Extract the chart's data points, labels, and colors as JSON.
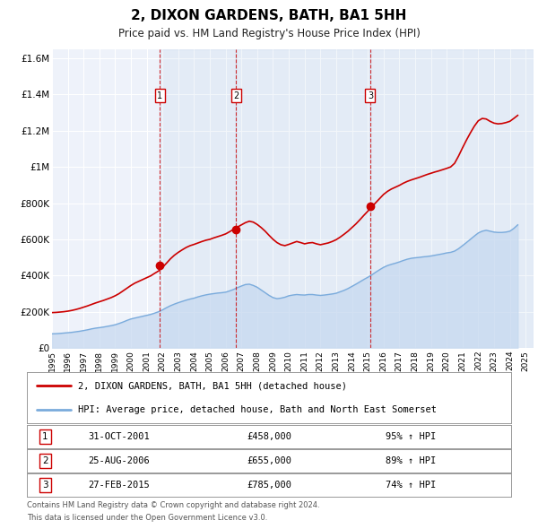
{
  "title": "2, DIXON GARDENS, BATH, BA1 5HH",
  "subtitle": "Price paid vs. HM Land Registry's House Price Index (HPI)",
  "background_color": "#ffffff",
  "plot_bg_color": "#eef2fa",
  "grid_color": "#ffffff",
  "hpi_line_color": "#7aabdc",
  "hpi_fill_color": "#c5d8f0",
  "price_line_color": "#cc0000",
  "ylim": [
    0,
    1650000
  ],
  "yticks": [
    0,
    200000,
    400000,
    600000,
    800000,
    1000000,
    1200000,
    1400000,
    1600000
  ],
  "ytick_labels": [
    "£0",
    "£200K",
    "£400K",
    "£600K",
    "£800K",
    "£1M",
    "£1.2M",
    "£1.4M",
    "£1.6M"
  ],
  "xmin": 1995.0,
  "xmax": 2025.5,
  "sale_dates": [
    2001.833,
    2006.647,
    2015.162
  ],
  "sale_prices": [
    458000,
    655000,
    785000
  ],
  "sale_labels": [
    "1",
    "2",
    "3"
  ],
  "legend_line1": "2, DIXON GARDENS, BATH, BA1 5HH (detached house)",
  "legend_line2": "HPI: Average price, detached house, Bath and North East Somerset",
  "table_rows": [
    {
      "num": "1",
      "date": "31-OCT-2001",
      "price": "£458,000",
      "pct": "95% ↑ HPI"
    },
    {
      "num": "2",
      "date": "25-AUG-2006",
      "price": "£655,000",
      "pct": "89% ↑ HPI"
    },
    {
      "num": "3",
      "date": "27-FEB-2015",
      "price": "£785,000",
      "pct": "74% ↑ HPI"
    }
  ],
  "footer_line1": "Contains HM Land Registry data © Crown copyright and database right 2024.",
  "footer_line2": "This data is licensed under the Open Government Licence v3.0.",
  "hpi_data_x": [
    1995.0,
    1995.25,
    1995.5,
    1995.75,
    1996.0,
    1996.25,
    1996.5,
    1996.75,
    1997.0,
    1997.25,
    1997.5,
    1997.75,
    1998.0,
    1998.25,
    1998.5,
    1998.75,
    1999.0,
    1999.25,
    1999.5,
    1999.75,
    2000.0,
    2000.25,
    2000.5,
    2000.75,
    2001.0,
    2001.25,
    2001.5,
    2001.75,
    2002.0,
    2002.25,
    2002.5,
    2002.75,
    2003.0,
    2003.25,
    2003.5,
    2003.75,
    2004.0,
    2004.25,
    2004.5,
    2004.75,
    2005.0,
    2005.25,
    2005.5,
    2005.75,
    2006.0,
    2006.25,
    2006.5,
    2006.75,
    2007.0,
    2007.25,
    2007.5,
    2007.75,
    2008.0,
    2008.25,
    2008.5,
    2008.75,
    2009.0,
    2009.25,
    2009.5,
    2009.75,
    2010.0,
    2010.25,
    2010.5,
    2010.75,
    2011.0,
    2011.25,
    2011.5,
    2011.75,
    2012.0,
    2012.25,
    2012.5,
    2012.75,
    2013.0,
    2013.25,
    2013.5,
    2013.75,
    2014.0,
    2014.25,
    2014.5,
    2014.75,
    2015.0,
    2015.25,
    2015.5,
    2015.75,
    2016.0,
    2016.25,
    2016.5,
    2016.75,
    2017.0,
    2017.25,
    2017.5,
    2017.75,
    2018.0,
    2018.25,
    2018.5,
    2018.75,
    2019.0,
    2019.25,
    2019.5,
    2019.75,
    2020.0,
    2020.25,
    2020.5,
    2020.75,
    2021.0,
    2021.25,
    2021.5,
    2021.75,
    2022.0,
    2022.25,
    2022.5,
    2022.75,
    2023.0,
    2023.25,
    2023.5,
    2023.75,
    2024.0,
    2024.25,
    2024.5
  ],
  "hpi_data_y": [
    78000,
    78500,
    80000,
    82000,
    84000,
    86000,
    89000,
    92000,
    96000,
    100000,
    105000,
    109000,
    112000,
    115000,
    119000,
    123000,
    128000,
    135000,
    143000,
    152000,
    160000,
    165000,
    170000,
    175000,
    180000,
    185000,
    192000,
    200000,
    210000,
    222000,
    233000,
    242000,
    250000,
    257000,
    264000,
    270000,
    275000,
    282000,
    288000,
    293000,
    297000,
    300000,
    303000,
    305000,
    308000,
    315000,
    323000,
    333000,
    342000,
    350000,
    352000,
    345000,
    335000,
    320000,
    305000,
    290000,
    278000,
    272000,
    275000,
    280000,
    288000,
    292000,
    295000,
    293000,
    292000,
    295000,
    295000,
    292000,
    290000,
    292000,
    295000,
    298000,
    302000,
    310000,
    318000,
    328000,
    340000,
    352000,
    365000,
    378000,
    390000,
    403000,
    418000,
    432000,
    445000,
    455000,
    462000,
    468000,
    475000,
    483000,
    490000,
    495000,
    498000,
    500000,
    503000,
    505000,
    508000,
    512000,
    516000,
    520000,
    525000,
    528000,
    535000,
    548000,
    565000,
    582000,
    600000,
    618000,
    635000,
    645000,
    650000,
    645000,
    640000,
    638000,
    638000,
    640000,
    645000,
    660000,
    680000
  ],
  "price_data_x": [
    1995.0,
    1995.25,
    1995.5,
    1995.75,
    1996.0,
    1996.25,
    1996.5,
    1996.75,
    1997.0,
    1997.25,
    1997.5,
    1997.75,
    1998.0,
    1998.25,
    1998.5,
    1998.75,
    1999.0,
    1999.25,
    1999.5,
    1999.75,
    2000.0,
    2000.25,
    2000.5,
    2000.75,
    2001.0,
    2001.25,
    2001.5,
    2001.75,
    2002.0,
    2002.25,
    2002.5,
    2002.75,
    2003.0,
    2003.25,
    2003.5,
    2003.75,
    2004.0,
    2004.25,
    2004.5,
    2004.75,
    2005.0,
    2005.25,
    2005.5,
    2005.75,
    2006.0,
    2006.25,
    2006.5,
    2006.75,
    2007.0,
    2007.25,
    2007.5,
    2007.75,
    2008.0,
    2008.25,
    2008.5,
    2008.75,
    2009.0,
    2009.25,
    2009.5,
    2009.75,
    2010.0,
    2010.25,
    2010.5,
    2010.75,
    2011.0,
    2011.25,
    2011.5,
    2011.75,
    2012.0,
    2012.25,
    2012.5,
    2012.75,
    2013.0,
    2013.25,
    2013.5,
    2013.75,
    2014.0,
    2014.25,
    2014.5,
    2014.75,
    2015.0,
    2015.25,
    2015.5,
    2015.75,
    2016.0,
    2016.25,
    2016.5,
    2016.75,
    2017.0,
    2017.25,
    2017.5,
    2017.75,
    2018.0,
    2018.25,
    2018.5,
    2018.75,
    2019.0,
    2019.25,
    2019.5,
    2019.75,
    2020.0,
    2020.25,
    2020.5,
    2020.75,
    2021.0,
    2021.25,
    2021.5,
    2021.75,
    2022.0,
    2022.25,
    2022.5,
    2022.75,
    2023.0,
    2023.25,
    2023.5,
    2023.75,
    2024.0,
    2024.25,
    2024.5
  ],
  "price_data_y": [
    195000,
    196000,
    198000,
    200000,
    203000,
    207000,
    212000,
    218000,
    225000,
    232000,
    240000,
    248000,
    255000,
    262000,
    270000,
    278000,
    288000,
    300000,
    315000,
    330000,
    345000,
    358000,
    368000,
    378000,
    388000,
    398000,
    412000,
    425000,
    445000,
    468000,
    492000,
    512000,
    528000,
    542000,
    555000,
    565000,
    572000,
    580000,
    588000,
    595000,
    600000,
    608000,
    615000,
    622000,
    630000,
    642000,
    655000,
    668000,
    680000,
    692000,
    700000,
    695000,
    682000,
    665000,
    645000,
    622000,
    600000,
    582000,
    570000,
    565000,
    572000,
    580000,
    588000,
    582000,
    575000,
    580000,
    582000,
    575000,
    570000,
    575000,
    580000,
    588000,
    598000,
    612000,
    628000,
    645000,
    665000,
    685000,
    708000,
    732000,
    755000,
    778000,
    802000,
    825000,
    848000,
    865000,
    878000,
    888000,
    898000,
    910000,
    920000,
    928000,
    935000,
    942000,
    950000,
    958000,
    965000,
    972000,
    978000,
    985000,
    992000,
    1000000,
    1020000,
    1060000,
    1105000,
    1148000,
    1188000,
    1225000,
    1255000,
    1268000,
    1265000,
    1252000,
    1242000,
    1238000,
    1240000,
    1245000,
    1252000,
    1268000,
    1285000
  ]
}
